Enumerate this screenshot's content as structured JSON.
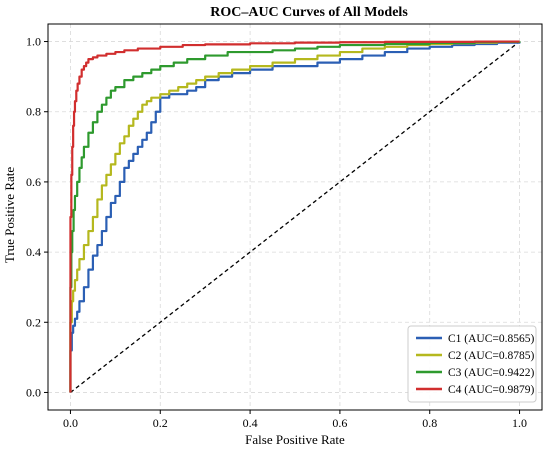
{
  "chart_data": {
    "type": "line",
    "title": "ROC–AUC Curves of All Models",
    "xlabel": "False Positive Rate",
    "ylabel": "True Positive Rate",
    "xlim": [
      -0.05,
      1.05
    ],
    "ylim": [
      -0.05,
      1.05
    ],
    "xticks": [
      0.0,
      0.2,
      0.4,
      0.6,
      0.8,
      1.0
    ],
    "yticks": [
      0.0,
      0.2,
      0.4,
      0.6,
      0.8,
      1.0
    ],
    "xtick_labels": [
      "0.0",
      "0.2",
      "0.4",
      "0.6",
      "0.8",
      "1.0"
    ],
    "ytick_labels": [
      "0.0",
      "0.2",
      "0.4",
      "0.6",
      "0.8",
      "1.0"
    ],
    "grid": true,
    "legend_position": "bottom-right",
    "series": [
      {
        "name": "C1 (AUC=0.8565)",
        "color": "#2b5fb4",
        "x": [
          0.0,
          0.0,
          0.003,
          0.006,
          0.01,
          0.015,
          0.02,
          0.03,
          0.04,
          0.05,
          0.06,
          0.07,
          0.08,
          0.09,
          0.1,
          0.11,
          0.12,
          0.13,
          0.14,
          0.15,
          0.16,
          0.17,
          0.18,
          0.19,
          0.2,
          0.22,
          0.24,
          0.26,
          0.28,
          0.3,
          0.33,
          0.36,
          0.4,
          0.45,
          0.5,
          0.55,
          0.6,
          0.65,
          0.7,
          0.75,
          0.8,
          0.85,
          0.9,
          0.95,
          1.0
        ],
        "y": [
          0.0,
          0.12,
          0.17,
          0.19,
          0.21,
          0.23,
          0.26,
          0.3,
          0.35,
          0.39,
          0.42,
          0.46,
          0.5,
          0.54,
          0.56,
          0.6,
          0.64,
          0.66,
          0.68,
          0.7,
          0.72,
          0.74,
          0.77,
          0.8,
          0.84,
          0.85,
          0.85,
          0.86,
          0.87,
          0.89,
          0.9,
          0.91,
          0.92,
          0.93,
          0.93,
          0.94,
          0.95,
          0.96,
          0.97,
          0.98,
          0.985,
          0.99,
          0.993,
          0.997,
          1.0
        ]
      },
      {
        "name": "C2 (AUC=0.8785)",
        "color": "#b5b81e",
        "x": [
          0.0,
          0.0,
          0.003,
          0.006,
          0.01,
          0.015,
          0.02,
          0.03,
          0.04,
          0.05,
          0.06,
          0.07,
          0.08,
          0.09,
          0.1,
          0.11,
          0.12,
          0.13,
          0.14,
          0.15,
          0.16,
          0.17,
          0.18,
          0.2,
          0.22,
          0.24,
          0.26,
          0.28,
          0.3,
          0.33,
          0.36,
          0.4,
          0.45,
          0.5,
          0.55,
          0.6,
          0.65,
          0.7,
          0.75,
          0.8,
          0.85,
          0.9,
          0.95,
          1.0
        ],
        "y": [
          0.0,
          0.2,
          0.26,
          0.29,
          0.32,
          0.35,
          0.38,
          0.42,
          0.46,
          0.5,
          0.55,
          0.59,
          0.62,
          0.65,
          0.68,
          0.71,
          0.73,
          0.76,
          0.78,
          0.8,
          0.82,
          0.83,
          0.84,
          0.85,
          0.86,
          0.87,
          0.88,
          0.89,
          0.9,
          0.91,
          0.92,
          0.93,
          0.94,
          0.95,
          0.96,
          0.97,
          0.98,
          0.985,
          0.99,
          0.993,
          0.995,
          0.997,
          0.999,
          1.0
        ]
      },
      {
        "name": "C3 (AUC=0.9422)",
        "color": "#2e9a2e",
        "x": [
          0.0,
          0.0,
          0.002,
          0.004,
          0.007,
          0.01,
          0.015,
          0.02,
          0.025,
          0.03,
          0.04,
          0.05,
          0.06,
          0.07,
          0.08,
          0.09,
          0.1,
          0.12,
          0.14,
          0.16,
          0.18,
          0.2,
          0.23,
          0.26,
          0.3,
          0.35,
          0.4,
          0.45,
          0.5,
          0.55,
          0.6,
          0.7,
          0.8,
          0.9,
          1.0
        ],
        "y": [
          0.0,
          0.3,
          0.4,
          0.46,
          0.52,
          0.56,
          0.6,
          0.64,
          0.67,
          0.7,
          0.74,
          0.77,
          0.8,
          0.82,
          0.84,
          0.86,
          0.87,
          0.89,
          0.9,
          0.91,
          0.92,
          0.93,
          0.94,
          0.95,
          0.96,
          0.97,
          0.97,
          0.975,
          0.98,
          0.985,
          0.99,
          0.993,
          0.996,
          0.999,
          1.0
        ]
      },
      {
        "name": "C4 (AUC=0.9879)",
        "color": "#d12e2e",
        "x": [
          0.0,
          0.0,
          0.002,
          0.004,
          0.006,
          0.008,
          0.01,
          0.013,
          0.016,
          0.02,
          0.025,
          0.03,
          0.035,
          0.04,
          0.05,
          0.06,
          0.08,
          0.1,
          0.12,
          0.15,
          0.2,
          0.25,
          0.3,
          0.4,
          0.5,
          0.6,
          0.7,
          0.8,
          0.9,
          1.0
        ],
        "y": [
          0.0,
          0.5,
          0.62,
          0.7,
          0.76,
          0.8,
          0.83,
          0.86,
          0.88,
          0.9,
          0.92,
          0.93,
          0.94,
          0.95,
          0.955,
          0.96,
          0.965,
          0.97,
          0.975,
          0.98,
          0.985,
          0.99,
          0.992,
          0.995,
          0.997,
          0.998,
          0.999,
          0.999,
          1.0,
          1.0
        ]
      }
    ],
    "reference_line": {
      "x": [
        0.0,
        1.0
      ],
      "y": [
        0.0,
        1.0
      ],
      "style": "dashed",
      "color": "#000000"
    }
  }
}
